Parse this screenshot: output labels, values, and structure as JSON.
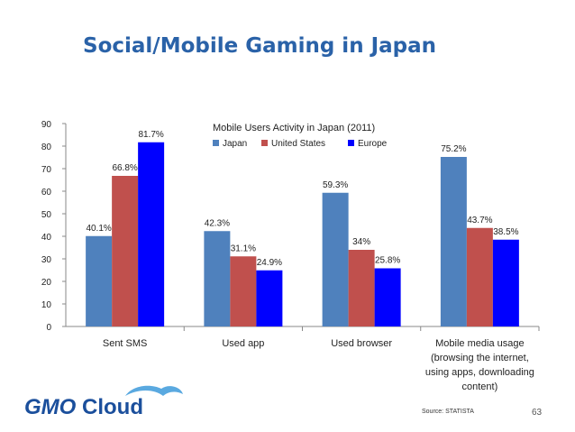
{
  "slide": {
    "title": "Social/Mobile Gaming in Japan",
    "source": "Source: STATISTA",
    "page_number": "63"
  },
  "logo": {
    "text": "GMOCloud",
    "colors": {
      "gmo": "#1b4f9c",
      "cloud": "#5aa9e0"
    }
  },
  "chart_data": {
    "type": "bar",
    "title": "Mobile Users Activity in Japan (2011)",
    "categories": [
      [
        "Sent SMS"
      ],
      [
        "Used app"
      ],
      [
        "Used browser"
      ],
      [
        "Mobile media usage",
        "(browsing the internet,",
        "using apps, downloading",
        "content)"
      ]
    ],
    "series": [
      {
        "name": "Japan",
        "color": "#4f81bd",
        "values": [
          40.1,
          42.3,
          59.3,
          75.2
        ],
        "labels": [
          "40.1%",
          "42.3%",
          "59.3%",
          "75.2%"
        ]
      },
      {
        "name": "United States",
        "color": "#c0504d",
        "values": [
          66.8,
          31.1,
          34,
          43.7
        ],
        "labels": [
          "66.8%",
          "31.1%",
          "34%",
          "43.7%"
        ]
      },
      {
        "name": "Europe",
        "color": "#0000ff",
        "values": [
          81.7,
          24.9,
          25.8,
          38.5
        ],
        "labels": [
          "81.7%",
          "24.9%",
          "25.8%",
          "38.5%"
        ]
      }
    ],
    "ylim": [
      0,
      90
    ],
    "yticks": [
      0,
      10,
      20,
      30,
      40,
      50,
      60,
      70,
      80,
      90
    ],
    "grid": false,
    "legend_position": "top-center"
  }
}
